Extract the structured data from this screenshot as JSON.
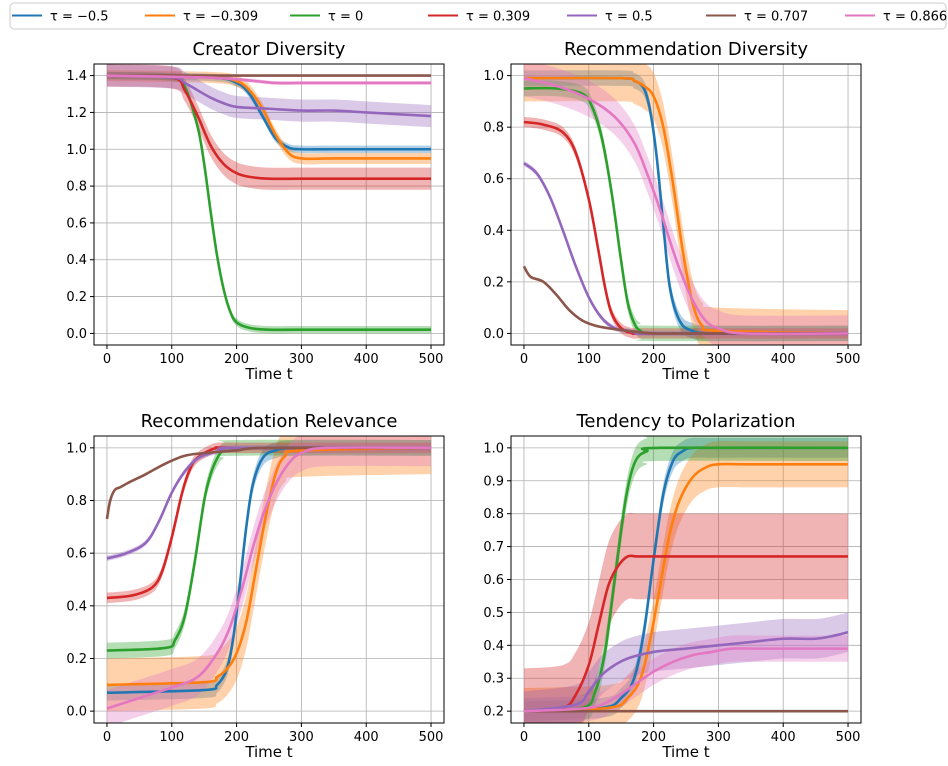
{
  "legend": [
    {
      "label": "τ = −0.5",
      "color": "#1f77b4"
    },
    {
      "label": "τ = −0.309",
      "color": "#ff7f0e"
    },
    {
      "label": "τ = 0",
      "color": "#2ca02c"
    },
    {
      "label": "τ = 0.309",
      "color": "#d62728"
    },
    {
      "label": "τ = 0.5",
      "color": "#9467bd"
    },
    {
      "label": "τ = 0.707",
      "color": "#8c564b"
    },
    {
      "label": "τ = 0.866",
      "color": "#e377c2"
    }
  ],
  "chart_data": [
    {
      "type": "line",
      "title": "Creator Diversity",
      "xlabel": "Time t",
      "xlim": [
        0,
        500
      ],
      "ylim": [
        0,
        1.4
      ],
      "xticks": [
        0,
        100,
        200,
        300,
        400,
        500
      ],
      "yticks": [
        0.0,
        0.2,
        0.4,
        0.6,
        0.8,
        1.0,
        1.2,
        1.4
      ],
      "ytick_labels": [
        "0.0",
        "0.2",
        "0.4",
        "0.6",
        "0.8",
        "1.0",
        "1.2",
        "1.4"
      ],
      "grid": true,
      "series": [
        {
          "color": "#1f77b4",
          "x": [
            0,
            160,
            200,
            220,
            240,
            260,
            280,
            300,
            350,
            500
          ],
          "y": [
            1.4,
            1.39,
            1.36,
            1.3,
            1.18,
            1.06,
            1.01,
            1.0,
            1.0,
            1.0
          ],
          "band": 0.02
        },
        {
          "color": "#ff7f0e",
          "x": [
            0,
            160,
            200,
            220,
            240,
            260,
            280,
            300,
            350,
            500
          ],
          "y": [
            1.4,
            1.39,
            1.37,
            1.32,
            1.22,
            1.08,
            0.98,
            0.95,
            0.95,
            0.95
          ],
          "band": 0.03
        },
        {
          "color": "#2ca02c",
          "x": [
            0,
            100,
            120,
            140,
            150,
            160,
            170,
            180,
            190,
            200,
            220,
            250,
            300,
            500
          ],
          "y": [
            1.4,
            1.39,
            1.34,
            1.12,
            0.92,
            0.66,
            0.42,
            0.24,
            0.12,
            0.06,
            0.03,
            0.02,
            0.02,
            0.02
          ],
          "band": 0.02
        },
        {
          "color": "#d62728",
          "x": [
            0,
            100,
            120,
            140,
            160,
            180,
            200,
            220,
            250,
            300,
            400,
            500
          ],
          "y": [
            1.4,
            1.39,
            1.32,
            1.18,
            1.02,
            0.92,
            0.87,
            0.85,
            0.84,
            0.84,
            0.84,
            0.84
          ],
          "band": 0.06
        },
        {
          "color": "#9467bd",
          "x": [
            0,
            100,
            120,
            140,
            160,
            180,
            200,
            250,
            300,
            350,
            400,
            450,
            500
          ],
          "y": [
            1.4,
            1.39,
            1.36,
            1.32,
            1.28,
            1.25,
            1.23,
            1.22,
            1.21,
            1.21,
            1.2,
            1.19,
            1.18
          ],
          "band": 0.06
        },
        {
          "color": "#8c564b",
          "x": [
            0,
            200,
            300,
            400,
            500
          ],
          "y": [
            1.4,
            1.4,
            1.4,
            1.4,
            1.4
          ],
          "band": 0.0
        },
        {
          "color": "#e377c2",
          "x": [
            0,
            150,
            200,
            230,
            260,
            300,
            350,
            500
          ],
          "y": [
            1.4,
            1.39,
            1.38,
            1.37,
            1.36,
            1.36,
            1.36,
            1.36
          ],
          "band": 0.01
        }
      ]
    },
    {
      "type": "line",
      "title": "Recommendation Diversity",
      "xlabel": "Time t",
      "xlim": [
        0,
        500
      ],
      "ylim": [
        0,
        1.0
      ],
      "xticks": [
        0,
        100,
        200,
        300,
        400,
        500
      ],
      "yticks": [
        0.0,
        0.2,
        0.4,
        0.6,
        0.8,
        1.0
      ],
      "ytick_labels": [
        "0.0",
        "0.2",
        "0.4",
        "0.6",
        "0.8",
        "1.0"
      ],
      "grid": true,
      "series": [
        {
          "color": "#1f77b4",
          "x": [
            0,
            150,
            170,
            185,
            195,
            205,
            215,
            225,
            240,
            260,
            300,
            500
          ],
          "y": [
            0.99,
            0.99,
            0.98,
            0.95,
            0.86,
            0.68,
            0.42,
            0.18,
            0.05,
            0.01,
            0.0,
            0.0
          ],
          "band": 0.03
        },
        {
          "color": "#ff7f0e",
          "x": [
            0,
            150,
            170,
            185,
            200,
            215,
            230,
            245,
            260,
            275,
            300,
            500
          ],
          "y": [
            0.99,
            0.99,
            0.98,
            0.96,
            0.92,
            0.8,
            0.58,
            0.32,
            0.12,
            0.03,
            0.01,
            0.0
          ],
          "band": 0.09
        },
        {
          "color": "#2ca02c",
          "x": [
            0,
            50,
            90,
            105,
            120,
            135,
            150,
            160,
            170,
            180,
            200,
            500
          ],
          "y": [
            0.95,
            0.95,
            0.93,
            0.88,
            0.76,
            0.55,
            0.28,
            0.12,
            0.04,
            0.01,
            0.0,
            0.0
          ],
          "band": 0.03
        },
        {
          "color": "#d62728",
          "x": [
            0,
            30,
            60,
            80,
            100,
            115,
            125,
            135,
            150,
            170,
            200,
            500
          ],
          "y": [
            0.82,
            0.81,
            0.78,
            0.7,
            0.52,
            0.32,
            0.18,
            0.08,
            0.02,
            0.0,
            0.0,
            0.0
          ],
          "band": 0.02
        },
        {
          "color": "#9467bd",
          "x": [
            0,
            20,
            40,
            60,
            80,
            100,
            120,
            140,
            160,
            180,
            200,
            500
          ],
          "y": [
            0.66,
            0.62,
            0.53,
            0.4,
            0.26,
            0.14,
            0.06,
            0.02,
            0.01,
            0.0,
            0.0,
            0.0
          ],
          "band": 0.01
        },
        {
          "color": "#8c564b",
          "x": [
            0,
            10,
            30,
            50,
            70,
            90,
            110,
            130,
            160,
            200,
            250,
            500
          ],
          "y": [
            0.26,
            0.22,
            0.2,
            0.15,
            0.09,
            0.05,
            0.03,
            0.02,
            0.01,
            0.0,
            0.0,
            0.0
          ],
          "band": 0.0
        },
        {
          "color": "#e377c2",
          "x": [
            0,
            50,
            100,
            140,
            170,
            190,
            210,
            225,
            240,
            260,
            280,
            300,
            340,
            500
          ],
          "y": [
            0.99,
            0.96,
            0.91,
            0.84,
            0.74,
            0.62,
            0.48,
            0.36,
            0.25,
            0.13,
            0.05,
            0.02,
            0.0,
            0.0
          ],
          "band": 0.07
        }
      ]
    },
    {
      "type": "line",
      "title": "Recommendation Relevance",
      "xlabel": "Time t",
      "xlim": [
        0,
        500
      ],
      "ylim": [
        0,
        1.0
      ],
      "xticks": [
        0,
        100,
        200,
        300,
        400,
        500
      ],
      "yticks": [
        0.0,
        0.2,
        0.4,
        0.6,
        0.8,
        1.0
      ],
      "ytick_labels": [
        "0.0",
        "0.2",
        "0.4",
        "0.6",
        "0.8",
        "1.0"
      ],
      "grid": true,
      "series": [
        {
          "color": "#1f77b4",
          "x": [
            0,
            150,
            170,
            185,
            195,
            205,
            215,
            225,
            240,
            260,
            300,
            500
          ],
          "y": [
            0.07,
            0.08,
            0.1,
            0.16,
            0.28,
            0.48,
            0.7,
            0.86,
            0.96,
            0.99,
            1.0,
            1.0
          ],
          "band": 0.03
        },
        {
          "color": "#ff7f0e",
          "x": [
            0,
            150,
            170,
            185,
            200,
            215,
            230,
            245,
            260,
            275,
            300,
            500
          ],
          "y": [
            0.1,
            0.11,
            0.13,
            0.16,
            0.22,
            0.34,
            0.54,
            0.74,
            0.9,
            0.97,
            0.99,
            1.0
          ],
          "band": 0.1
        },
        {
          "color": "#2ca02c",
          "x": [
            0,
            90,
            105,
            120,
            135,
            150,
            160,
            170,
            180,
            200,
            500
          ],
          "y": [
            0.23,
            0.24,
            0.27,
            0.36,
            0.56,
            0.8,
            0.9,
            0.96,
            0.99,
            1.0,
            1.0
          ],
          "band": 0.03
        },
        {
          "color": "#d62728",
          "x": [
            0,
            40,
            70,
            85,
            100,
            115,
            125,
            135,
            150,
            170,
            200,
            500
          ],
          "y": [
            0.43,
            0.44,
            0.47,
            0.53,
            0.66,
            0.82,
            0.9,
            0.95,
            0.98,
            1.0,
            1.0,
            1.0
          ],
          "band": 0.02
        },
        {
          "color": "#9467bd",
          "x": [
            0,
            30,
            60,
            80,
            100,
            120,
            140,
            160,
            180,
            200,
            500
          ],
          "y": [
            0.58,
            0.6,
            0.64,
            0.72,
            0.83,
            0.91,
            0.96,
            0.98,
            0.99,
            1.0,
            1.0
          ],
          "band": 0.01
        },
        {
          "color": "#8c564b",
          "x": [
            0,
            5,
            12,
            20,
            35,
            60,
            90,
            120,
            150,
            200,
            250,
            500
          ],
          "y": [
            0.73,
            0.8,
            0.84,
            0.85,
            0.87,
            0.9,
            0.94,
            0.97,
            0.98,
            0.99,
            1.0,
            1.0
          ],
          "band": 0.0
        },
        {
          "color": "#e377c2",
          "x": [
            0,
            50,
            100,
            140,
            170,
            190,
            210,
            225,
            240,
            260,
            280,
            300,
            340,
            500
          ],
          "y": [
            0.01,
            0.05,
            0.09,
            0.13,
            0.22,
            0.32,
            0.48,
            0.62,
            0.74,
            0.86,
            0.94,
            0.98,
            1.0,
            1.0
          ],
          "band": 0.07
        }
      ]
    },
    {
      "type": "line",
      "title": "Tendency to Polarization",
      "xlabel": "Time t",
      "xlim": [
        0,
        500
      ],
      "ylim": [
        0.2,
        1.0
      ],
      "xticks": [
        0,
        100,
        200,
        300,
        400,
        500
      ],
      "yticks": [
        0.2,
        0.3,
        0.4,
        0.5,
        0.6,
        0.7,
        0.8,
        0.9,
        1.0
      ],
      "ytick_labels": [
        "0.2",
        "0.3",
        "0.4",
        "0.5",
        "0.6",
        "0.7",
        "0.8",
        "0.9",
        "1.0"
      ],
      "grid": true,
      "series": [
        {
          "color": "#1f77b4",
          "x": [
            0,
            120,
            150,
            170,
            185,
            200,
            215,
            230,
            245,
            260,
            300,
            500
          ],
          "y": [
            0.2,
            0.21,
            0.24,
            0.3,
            0.44,
            0.66,
            0.86,
            0.96,
            0.99,
            1.0,
            1.0,
            1.0
          ],
          "band": 0.03
        },
        {
          "color": "#ff7f0e",
          "x": [
            0,
            130,
            160,
            180,
            195,
            210,
            225,
            240,
            260,
            280,
            300,
            350,
            500
          ],
          "y": [
            0.2,
            0.21,
            0.24,
            0.3,
            0.42,
            0.58,
            0.74,
            0.84,
            0.91,
            0.94,
            0.95,
            0.95,
            0.95
          ],
          "band": 0.07
        },
        {
          "color": "#2ca02c",
          "x": [
            0,
            90,
            110,
            125,
            140,
            155,
            165,
            175,
            190,
            210,
            500
          ],
          "y": [
            0.2,
            0.21,
            0.26,
            0.38,
            0.6,
            0.82,
            0.92,
            0.97,
            0.99,
            1.0,
            1.0
          ],
          "band": 0.04
        },
        {
          "color": "#d62728",
          "x": [
            0,
            60,
            80,
            100,
            115,
            130,
            145,
            160,
            175,
            200,
            250,
            300,
            500
          ],
          "y": [
            0.2,
            0.21,
            0.25,
            0.34,
            0.46,
            0.58,
            0.64,
            0.67,
            0.67,
            0.67,
            0.67,
            0.67,
            0.67
          ],
          "band": 0.13
        },
        {
          "color": "#9467bd",
          "x": [
            0,
            80,
            100,
            120,
            140,
            160,
            200,
            250,
            300,
            350,
            400,
            450,
            480,
            500
          ],
          "y": [
            0.2,
            0.22,
            0.26,
            0.31,
            0.34,
            0.36,
            0.38,
            0.39,
            0.4,
            0.41,
            0.42,
            0.42,
            0.43,
            0.44
          ],
          "band": 0.06
        },
        {
          "color": "#8c564b",
          "x": [
            0,
            200,
            300,
            400,
            500
          ],
          "y": [
            0.2,
            0.2,
            0.2,
            0.2,
            0.2
          ],
          "band": 0.0
        },
        {
          "color": "#e377c2",
          "x": [
            0,
            100,
            140,
            170,
            200,
            230,
            260,
            290,
            320,
            360,
            400,
            500
          ],
          "y": [
            0.2,
            0.21,
            0.24,
            0.28,
            0.32,
            0.35,
            0.37,
            0.38,
            0.39,
            0.39,
            0.39,
            0.39
          ],
          "band": 0.04
        }
      ]
    }
  ]
}
